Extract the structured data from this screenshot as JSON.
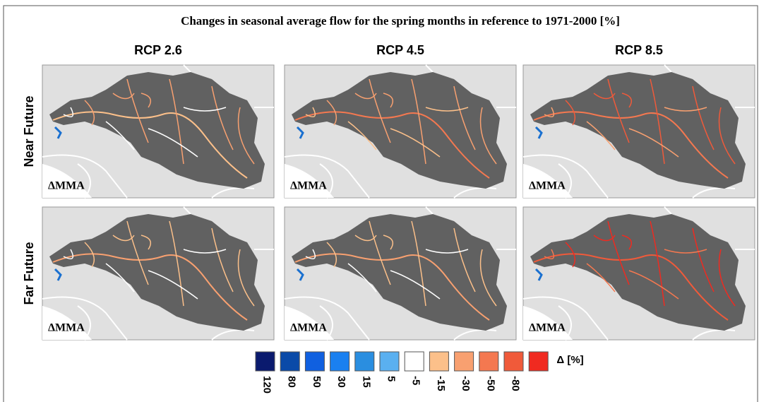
{
  "title": "Changes in seasonal average flow for the spring months in reference to 1971-2000 [%]",
  "columns": [
    "RCP 2.6",
    "RCP 4.5",
    "RCP 8.5"
  ],
  "rows": [
    "Near Future",
    "Far Future"
  ],
  "panels": [
    {
      "label": "ΔMMA"
    },
    {
      "label": "ΔMMA"
    },
    {
      "label": "ΔMMA"
    },
    {
      "label": "ΔMMA"
    },
    {
      "label": "ΔMMA"
    },
    {
      "label": "ΔMMA"
    }
  ],
  "legend": {
    "title": "Δ [%]",
    "colors": [
      "#0a1a6e",
      "#0a4aa8",
      "#1060e0",
      "#1a80f0",
      "#2a8ee0",
      "#5ab0f0",
      "#ffffff",
      "#fcc08a",
      "#f8a070",
      "#f47850",
      "#f05a3a",
      "#f02a20"
    ],
    "labels": [
      "120",
      "80",
      "50",
      "30",
      "15",
      "5",
      "-5",
      "-15",
      "-30",
      "-50",
      "-80"
    ]
  }
}
